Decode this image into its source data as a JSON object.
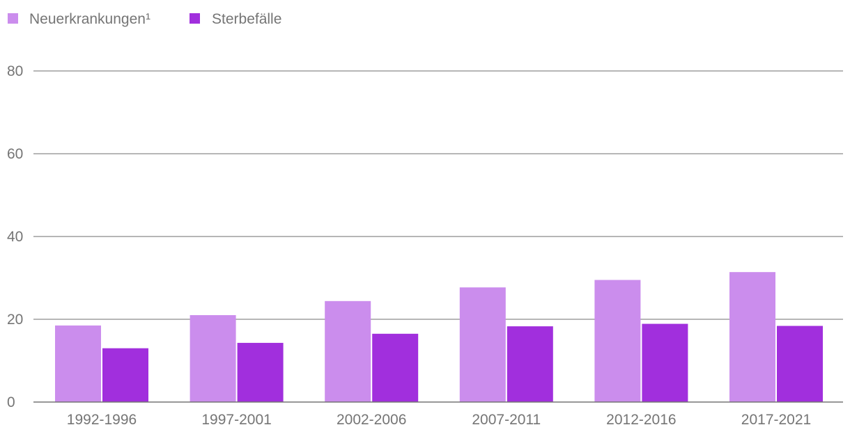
{
  "chart_data": {
    "type": "bar",
    "title": "",
    "xlabel": "",
    "ylabel": "",
    "categories": [
      "1992-1996",
      "1997-2001",
      "2002-2006",
      "2007-2011",
      "2012-2016",
      "2017-2021"
    ],
    "series": [
      {
        "name": "Neuerkrankungen¹",
        "color": "#cb8ded",
        "values": [
          18.5,
          21.0,
          24.4,
          27.7,
          29.5,
          31.4
        ]
      },
      {
        "name": "Sterbefälle",
        "color": "#a12fdd",
        "values": [
          13.0,
          14.3,
          16.5,
          18.3,
          18.9,
          18.4
        ]
      }
    ],
    "ylim": [
      0,
      80
    ],
    "yticks": [
      0,
      20,
      40,
      60,
      80
    ],
    "grid": true,
    "legend_position": "top-left"
  }
}
